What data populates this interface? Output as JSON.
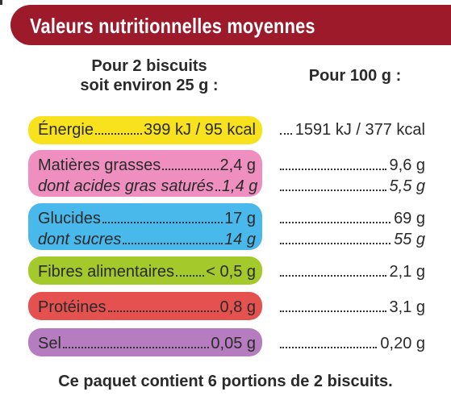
{
  "header": {
    "title": "Valeurs nutritionnelles moyennes"
  },
  "columns": {
    "portion_line1": "Pour 2 biscuits",
    "portion_line2": "soit environ 25 g :",
    "per100": "Pour 100 g :"
  },
  "rows": [
    {
      "label": "Énergie",
      "portion": "399 kJ / 95 kcal",
      "per100": "1591 kJ / 377 kcal",
      "color": "#f7e21d"
    },
    {
      "label": "Matières grasses",
      "portion": "2,4 g",
      "per100": "9,6 g",
      "color": "#ef8fc0",
      "sub_label": "dont acides gras saturés",
      "sub_portion": "1,4 g",
      "sub_per100": "5,5 g"
    },
    {
      "label": "Glucides",
      "portion": "17 g",
      "per100": "69 g",
      "color": "#49b8ea",
      "sub_label": "dont sucres",
      "sub_portion": "14 g",
      "sub_per100": "55 g"
    },
    {
      "label": "Fibres alimentaires",
      "portion": "< 0,5 g",
      "per100": "2,1 g",
      "color": "#a3c92b"
    },
    {
      "label": "Protéines",
      "portion": "0,8 g",
      "per100": "3,1 g",
      "color": "#e5514f"
    },
    {
      "label": "Sel",
      "portion": "0,05 g",
      "per100": "0,20 g",
      "color": "#b57dbf"
    }
  ],
  "footer": "Ce paquet contient 6 portions de 2 biscuits."
}
